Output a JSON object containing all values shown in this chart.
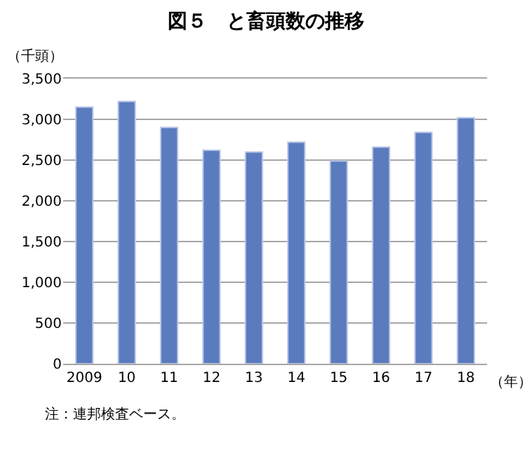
{
  "chart_data": {
    "type": "bar",
    "title": "図５　と畜頭数の推移",
    "ylabel": "（千頭）",
    "xlabel": "（年）",
    "categories": [
      "2009",
      "10",
      "11",
      "12",
      "13",
      "14",
      "15",
      "16",
      "17",
      "18"
    ],
    "values": [
      3150,
      3220,
      2900,
      2620,
      2600,
      2720,
      2490,
      2660,
      2840,
      3020
    ],
    "color": "#5b7bbf",
    "ylim": [
      0,
      3500
    ],
    "yticks": [
      {
        "value": 0,
        "label": "0"
      },
      {
        "value": 500,
        "label": "500"
      },
      {
        "value": 1000,
        "label": "1,000"
      },
      {
        "value": 1500,
        "label": "1,500"
      },
      {
        "value": 2000,
        "label": "2,000"
      },
      {
        "value": 2500,
        "label": "2,500"
      },
      {
        "value": 3000,
        "label": "3,000"
      },
      {
        "value": 3500,
        "label": "3,500"
      }
    ],
    "grid": "y",
    "annotations": [
      "注：連邦検査ベース。"
    ]
  }
}
